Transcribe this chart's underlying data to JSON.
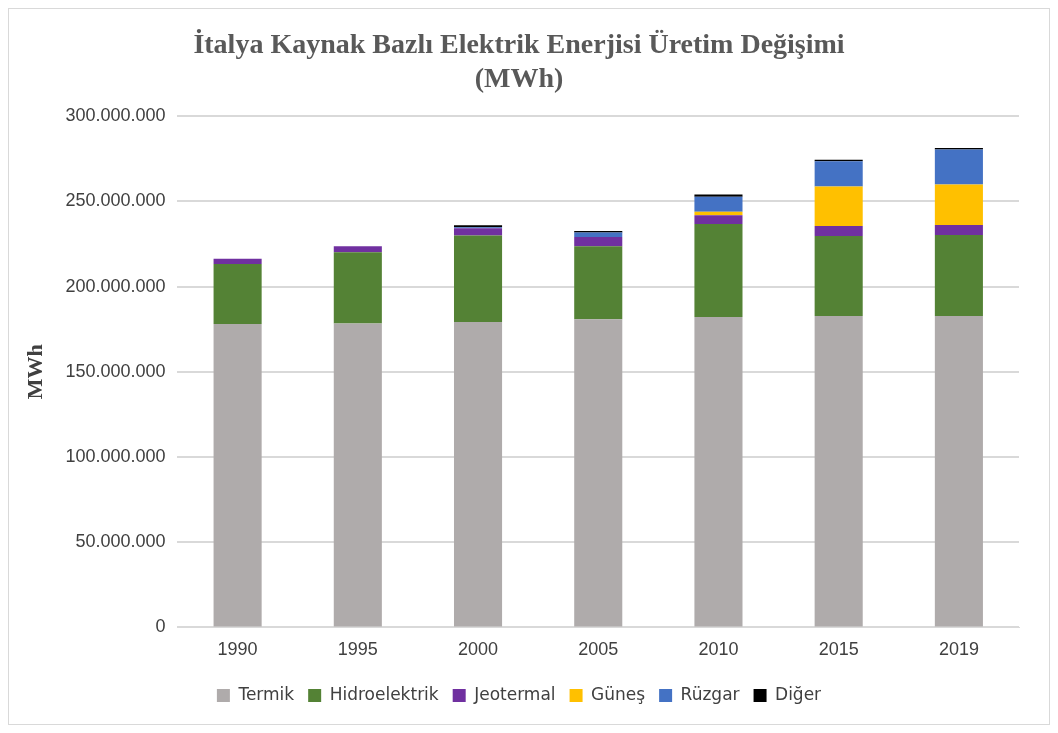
{
  "chart_data": {
    "type": "bar",
    "stacked": true,
    "title": "İtalya Kaynak Bazlı Elektrik Enerjisi Üretim Değişimi\n(MWh)",
    "ylabel": "MWh",
    "categories": [
      "1990",
      "1995",
      "2000",
      "2005",
      "2010",
      "2015",
      "2019"
    ],
    "series": [
      {
        "name": "Termik",
        "color": "#afabab",
        "values": [
          178000000,
          178400000,
          179200000,
          180900000,
          182100000,
          182700000,
          182700000
        ]
      },
      {
        "name": "Hidroelektrik",
        "color": "#548235",
        "values": [
          35300000,
          41800000,
          50800000,
          42800000,
          54700000,
          47000000,
          47600000
        ]
      },
      {
        "name": "Jeotermal",
        "color": "#7030a0",
        "values": [
          3000000,
          3500000,
          4300000,
          5400000,
          5000000,
          5800000,
          5900000
        ]
      },
      {
        "name": "Güneş",
        "color": "#ffc000",
        "values": [
          0,
          0,
          0,
          0,
          2100000,
          23300000,
          23700000
        ]
      },
      {
        "name": "Rüzgar",
        "color": "#4472c4",
        "values": [
          0,
          0,
          600000,
          2700000,
          8900000,
          14800000,
          20600000
        ]
      },
      {
        "name": "Diğer",
        "color": "#000000",
        "values": [
          0,
          0,
          1100000,
          800000,
          1200000,
          800000,
          800000
        ]
      }
    ],
    "ylim": [
      0,
      300000000
    ],
    "yticks": [
      {
        "value": 0,
        "label": "0"
      },
      {
        "value": 50000000,
        "label": "50.000.000"
      },
      {
        "value": 100000000,
        "label": "100.000.000"
      },
      {
        "value": 150000000,
        "label": "150.000.000"
      },
      {
        "value": 200000000,
        "label": "200.000.000"
      },
      {
        "value": 250000000,
        "label": "250.000.000"
      },
      {
        "value": 300000000,
        "label": "300.000.000"
      }
    ],
    "grid": "y",
    "legend": "bottom"
  }
}
